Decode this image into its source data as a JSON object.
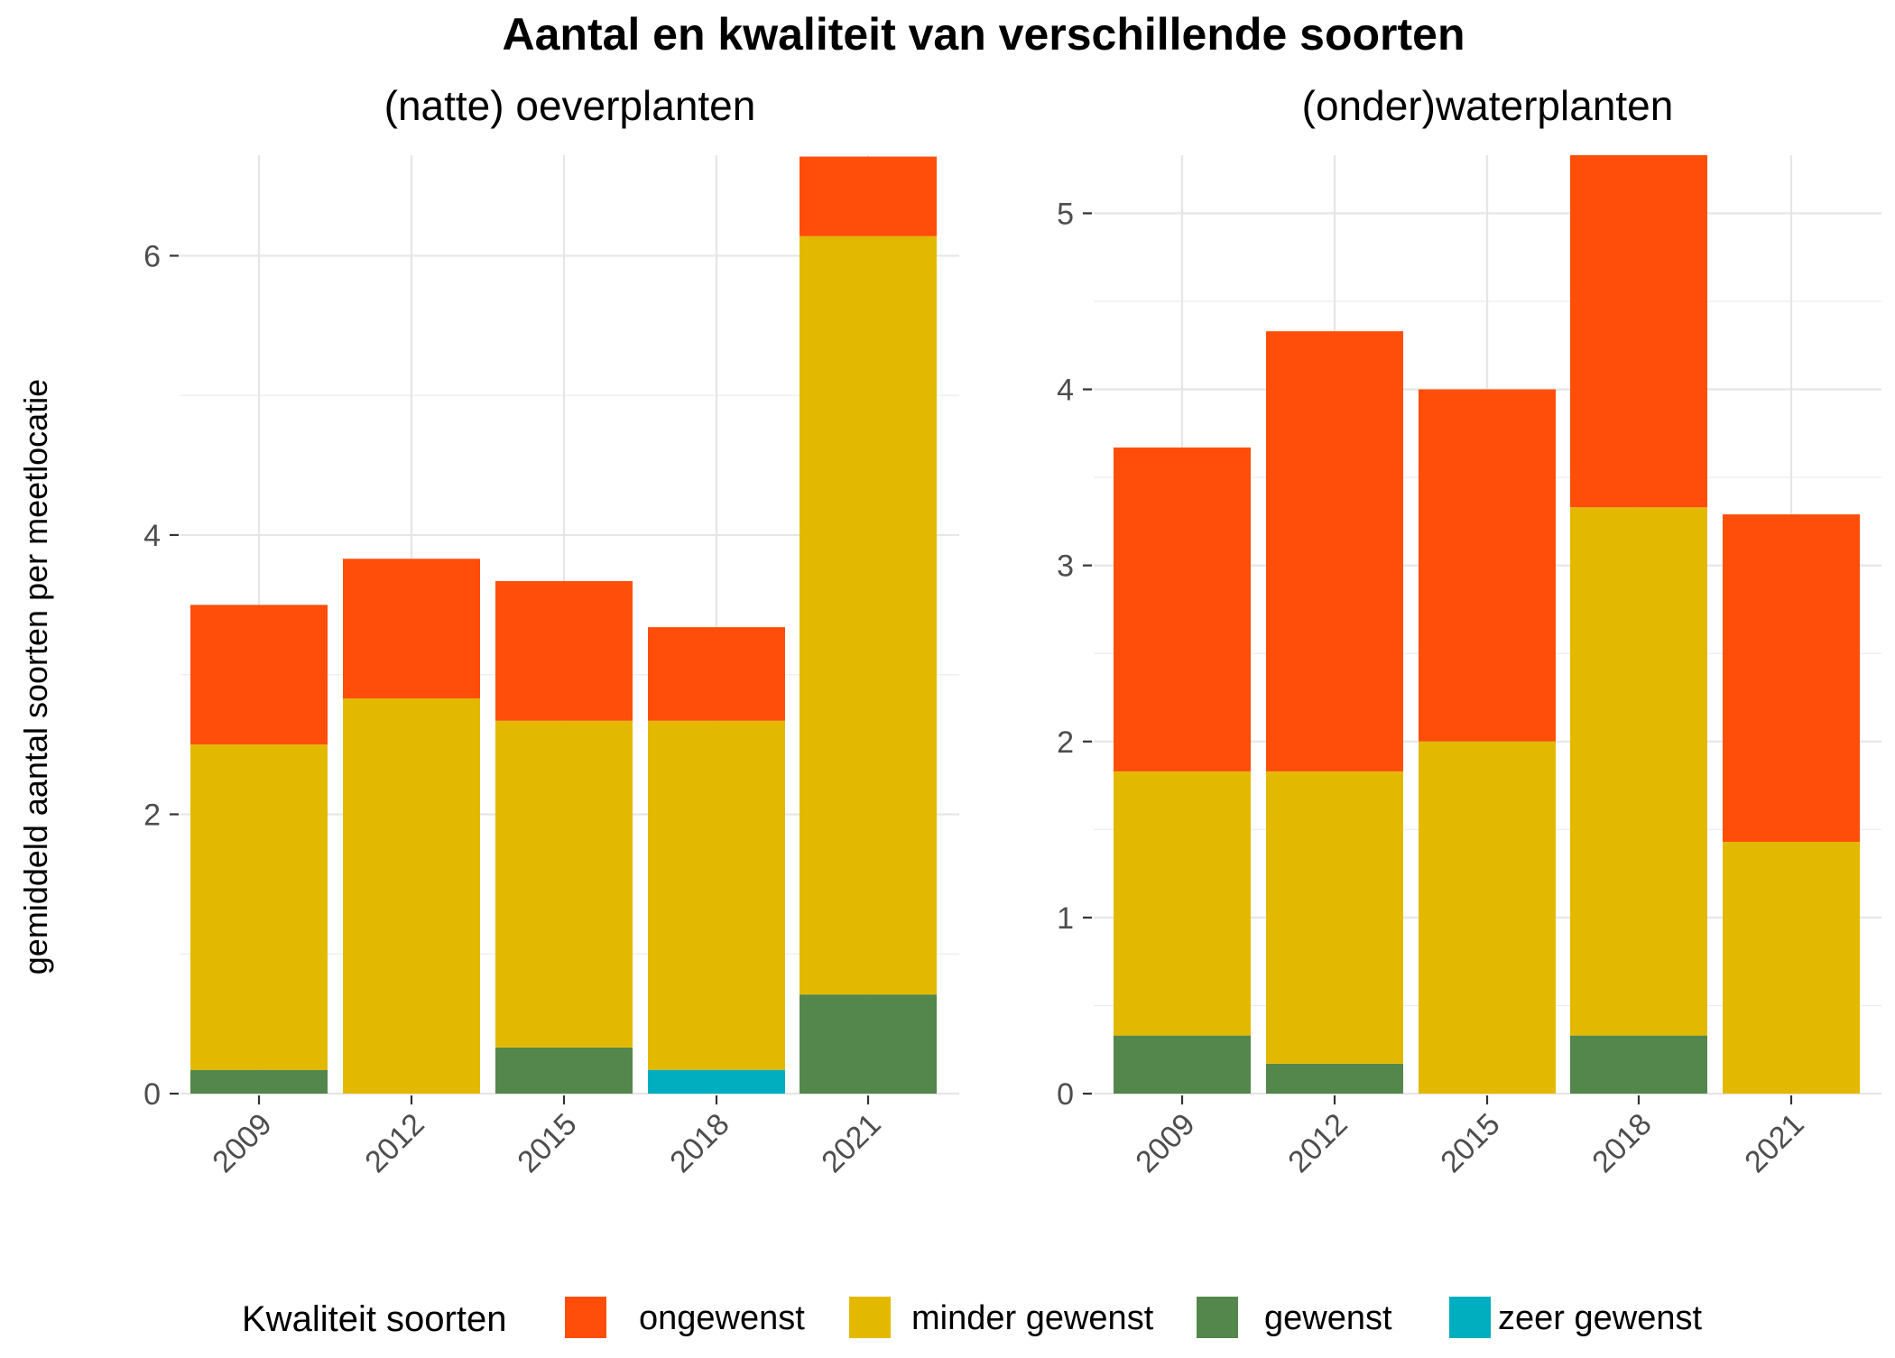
{
  "title": "Aantal en kwaliteit van verschillende soorten",
  "ylabel": "gemiddeld aantal soorten per meetlocatie",
  "legend": {
    "title": "Kwaliteit soorten",
    "position": "bottom",
    "items": [
      {
        "key": "ongewenst",
        "label": "ongewenst",
        "color": "#FF4E0A"
      },
      {
        "key": "minder_gewenst",
        "label": "minder gewenst",
        "color": "#E3B900"
      },
      {
        "key": "gewenst",
        "label": "gewenst",
        "color": "#54874B"
      },
      {
        "key": "zeer_gewenst",
        "label": "zeer gewenst",
        "color": "#00AFBF"
      }
    ]
  },
  "chart_data": [
    {
      "type": "bar",
      "stacked": true,
      "title": "(natte) oeverplanten",
      "categories": [
        "2009",
        "2012",
        "2015",
        "2018",
        "2021"
      ],
      "ylim": [
        0,
        6.72
      ],
      "yticks": [
        0,
        2,
        4,
        6
      ],
      "grid": true,
      "series": [
        {
          "name": "zeer gewenst",
          "key": "zeer_gewenst",
          "values": [
            0,
            0,
            0,
            0.17,
            0
          ]
        },
        {
          "name": "gewenst",
          "key": "gewenst",
          "values": [
            0.17,
            0,
            0.33,
            0,
            0.71
          ]
        },
        {
          "name": "minder gewenst",
          "key": "minder_gewenst",
          "values": [
            2.33,
            2.83,
            2.34,
            2.5,
            5.43
          ]
        },
        {
          "name": "ongewenst",
          "key": "ongewenst",
          "values": [
            1.0,
            1.0,
            1.0,
            0.67,
            0.57
          ]
        }
      ]
    },
    {
      "type": "bar",
      "stacked": true,
      "title": "(onder)waterplanten",
      "categories": [
        "2009",
        "2012",
        "2015",
        "2018",
        "2021"
      ],
      "ylim": [
        0,
        5.33
      ],
      "yticks": [
        0,
        1,
        2,
        3,
        4,
        5
      ],
      "grid": true,
      "series": [
        {
          "name": "zeer gewenst",
          "key": "zeer_gewenst",
          "values": [
            0,
            0,
            0,
            0,
            0
          ]
        },
        {
          "name": "gewenst",
          "key": "gewenst",
          "values": [
            0.33,
            0.17,
            0,
            0.33,
            0
          ]
        },
        {
          "name": "minder gewenst",
          "key": "minder_gewenst",
          "values": [
            1.5,
            1.66,
            2.0,
            3.0,
            1.43
          ]
        },
        {
          "name": "ongewenst",
          "key": "ongewenst",
          "values": [
            1.84,
            2.5,
            2.0,
            2.0,
            1.86
          ]
        }
      ]
    }
  ]
}
